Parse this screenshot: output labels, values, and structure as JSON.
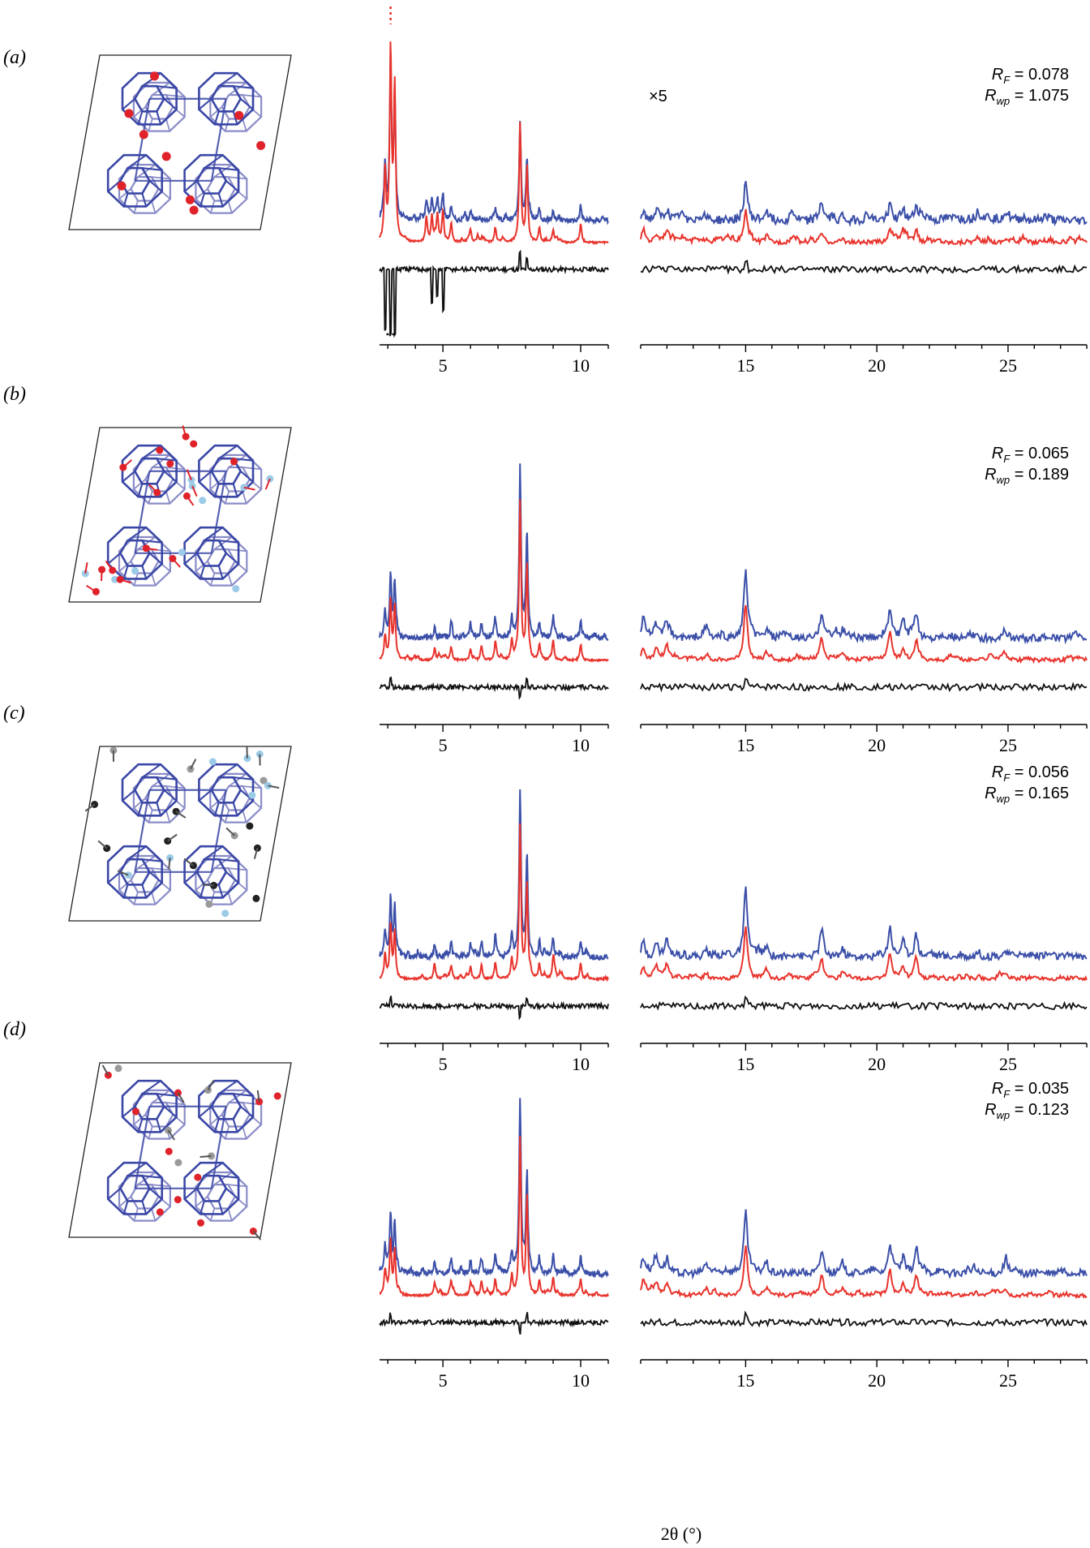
{
  "figure": {
    "x_axis_title": "2θ (°)",
    "scale_annotation": "×5"
  },
  "colors": {
    "observed": "#3b4fa8",
    "calculated": "#e8332c",
    "difference": "#111111",
    "framework": "#3a47a6",
    "framework_back": "#8a8cc8",
    "oxygen": "#e0222a",
    "nitrogen": "#9ccbe8",
    "carbon_dark": "#222222",
    "carbon_light": "#9a9a9a"
  },
  "chart_data": [
    {
      "panel": "(a)",
      "type": "line",
      "R_F": "0.078",
      "R_wp": "1.075",
      "scale_factor_high_angle": 5,
      "xlim_low": [
        2.7,
        11
      ],
      "xlim_high": [
        11,
        28
      ],
      "xticks": [
        5,
        10,
        15,
        20,
        25
      ],
      "series": [
        {
          "name": "observed"
        },
        {
          "name": "calculated"
        },
        {
          "name": "difference"
        }
      ],
      "peaks_low": [
        [
          2.9,
          0.55
        ],
        [
          3.1,
          1.5
        ],
        [
          3.25,
          1.2
        ],
        [
          4.4,
          0.2
        ],
        [
          4.6,
          0.2
        ],
        [
          4.8,
          0.22
        ],
        [
          5.0,
          0.25
        ],
        [
          5.3,
          0.15
        ],
        [
          6.0,
          0.1
        ],
        [
          6.9,
          0.12
        ],
        [
          7.8,
          0.95
        ],
        [
          8.05,
          0.6
        ],
        [
          8.5,
          0.12
        ],
        [
          9.0,
          0.1
        ],
        [
          10.0,
          0.15
        ]
      ],
      "peaks_high": [
        [
          11.1,
          0.12
        ],
        [
          11.6,
          0.1
        ],
        [
          12.0,
          0.12
        ],
        [
          13.5,
          0.06
        ],
        [
          15.0,
          0.4
        ],
        [
          15.8,
          0.08
        ],
        [
          17.9,
          0.12
        ],
        [
          18.7,
          0.05
        ],
        [
          20.5,
          0.18
        ],
        [
          21.0,
          0.1
        ],
        [
          21.5,
          0.15
        ],
        [
          24.9,
          0.05
        ]
      ]
    },
    {
      "panel": "(b)",
      "type": "line",
      "R_F": "0.065",
      "R_wp": "0.189",
      "xlim_low": [
        2.7,
        11
      ],
      "xlim_high": [
        11,
        28
      ],
      "xticks": [
        5,
        10,
        15,
        20,
        25
      ],
      "series": [
        {
          "name": "observed"
        },
        {
          "name": "calculated"
        }
      ],
      "peaks_low": [
        [
          2.9,
          0.25
        ],
        [
          3.1,
          0.6
        ],
        [
          3.25,
          0.5
        ],
        [
          4.7,
          0.12
        ],
        [
          5.3,
          0.14
        ],
        [
          6.0,
          0.12
        ],
        [
          6.4,
          0.15
        ],
        [
          6.9,
          0.17
        ],
        [
          7.5,
          0.2
        ],
        [
          7.8,
          1.6
        ],
        [
          8.05,
          0.95
        ],
        [
          8.5,
          0.15
        ],
        [
          9.0,
          0.2
        ],
        [
          10.0,
          0.16
        ]
      ],
      "peaks_high": [
        [
          11.1,
          0.2
        ],
        [
          11.6,
          0.18
        ],
        [
          12.0,
          0.2
        ],
        [
          13.5,
          0.1
        ],
        [
          15.0,
          0.9
        ],
        [
          15.8,
          0.12
        ],
        [
          17.9,
          0.3
        ],
        [
          18.7,
          0.1
        ],
        [
          20.5,
          0.4
        ],
        [
          21.0,
          0.2
        ],
        [
          21.5,
          0.3
        ],
        [
          24.9,
          0.1
        ]
      ]
    },
    {
      "panel": "(c)",
      "type": "line",
      "R_F": "0.056",
      "R_wp": "0.165",
      "xlim_low": [
        2.7,
        11
      ],
      "xlim_high": [
        11,
        28
      ],
      "xticks": [
        5,
        10,
        15,
        20,
        25
      ],
      "series": [
        {
          "name": "observed"
        },
        {
          "name": "calculated"
        }
      ],
      "peaks_low": [
        [
          2.9,
          0.25
        ],
        [
          3.1,
          0.55
        ],
        [
          3.25,
          0.45
        ],
        [
          4.7,
          0.12
        ],
        [
          5.3,
          0.14
        ],
        [
          6.0,
          0.12
        ],
        [
          6.4,
          0.15
        ],
        [
          6.9,
          0.17
        ],
        [
          7.5,
          0.2
        ],
        [
          7.8,
          1.55
        ],
        [
          8.05,
          0.95
        ],
        [
          8.5,
          0.15
        ],
        [
          9.0,
          0.18
        ],
        [
          10.0,
          0.16
        ]
      ],
      "peaks_high": [
        [
          11.1,
          0.2
        ],
        [
          11.6,
          0.18
        ],
        [
          12.0,
          0.2
        ],
        [
          13.5,
          0.1
        ],
        [
          15.0,
          0.85
        ],
        [
          15.8,
          0.12
        ],
        [
          17.9,
          0.3
        ],
        [
          18.7,
          0.1
        ],
        [
          20.5,
          0.4
        ],
        [
          21.0,
          0.2
        ],
        [
          21.5,
          0.3
        ],
        [
          24.9,
          0.1
        ]
      ]
    },
    {
      "panel": "(d)",
      "type": "line",
      "R_F": "0.035",
      "R_wp": "0.123",
      "xlim_low": [
        2.7,
        11
      ],
      "xlim_high": [
        11,
        28
      ],
      "xticks": [
        5,
        10,
        15,
        20,
        25
      ],
      "series": [
        {
          "name": "observed"
        },
        {
          "name": "calculated"
        }
      ],
      "peaks_low": [
        [
          2.9,
          0.25
        ],
        [
          3.1,
          0.55
        ],
        [
          3.25,
          0.45
        ],
        [
          4.7,
          0.12
        ],
        [
          5.3,
          0.14
        ],
        [
          6.0,
          0.12
        ],
        [
          6.4,
          0.15
        ],
        [
          6.9,
          0.17
        ],
        [
          7.5,
          0.2
        ],
        [
          7.8,
          1.6
        ],
        [
          8.05,
          0.95
        ],
        [
          8.5,
          0.15
        ],
        [
          9.0,
          0.18
        ],
        [
          10.0,
          0.16
        ]
      ],
      "peaks_high": [
        [
          11.1,
          0.2
        ],
        [
          11.6,
          0.18
        ],
        [
          12.0,
          0.2
        ],
        [
          13.5,
          0.1
        ],
        [
          15.0,
          0.8
        ],
        [
          15.8,
          0.12
        ],
        [
          17.9,
          0.3
        ],
        [
          18.7,
          0.1
        ],
        [
          20.5,
          0.4
        ],
        [
          21.0,
          0.2
        ],
        [
          21.5,
          0.3
        ],
        [
          24.9,
          0.1
        ]
      ]
    }
  ]
}
